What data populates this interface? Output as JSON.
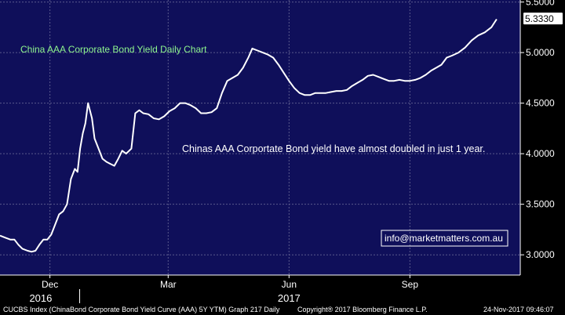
{
  "chart_data": {
    "type": "line",
    "title": "China AAA Corporate Bond Yield Daily Chart",
    "annotation": "Chinas AAA Corportate Bond yield have almost doubled in just 1 year.",
    "contact": "info@marketmatters.com.au",
    "ylim": [
      2.8,
      5.52
    ],
    "yticks": [
      "5.5000",
      "5.0000",
      "4.5000",
      "4.0000",
      "3.5000",
      "3.0000"
    ],
    "ytick_values": [
      5.5,
      5.0,
      4.5,
      4.0,
      3.5,
      3.0
    ],
    "last_value_label": "5.3330",
    "last_value": 5.333,
    "xlim": [
      "2016-10-24",
      "2017-11-24"
    ],
    "xticks": [
      {
        "label": "Dec",
        "date": "2016-12-01"
      },
      {
        "label": "Mar",
        "date": "2017-03-01"
      },
      {
        "label": "Jun",
        "date": "2017-06-01"
      },
      {
        "label": "Sep",
        "date": "2017-09-01"
      }
    ],
    "years": [
      {
        "label": "2016",
        "date": "2016-11-24"
      },
      {
        "label": "2017",
        "date": "2017-06-01"
      }
    ],
    "year_boundary": "2017-01-01",
    "grid": true,
    "series": [
      {
        "points": [
          [
            "2016-10-24",
            3.19
          ],
          [
            "2016-10-28",
            3.17
          ],
          [
            "2016-11-01",
            3.15
          ],
          [
            "2016-11-04",
            3.15
          ],
          [
            "2016-11-07",
            3.1
          ],
          [
            "2016-11-10",
            3.06
          ],
          [
            "2016-11-14",
            3.04
          ],
          [
            "2016-11-17",
            3.03
          ],
          [
            "2016-11-20",
            3.04
          ],
          [
            "2016-11-23",
            3.1
          ],
          [
            "2016-11-26",
            3.15
          ],
          [
            "2016-11-29",
            3.15
          ],
          [
            "2016-12-02",
            3.2
          ],
          [
            "2016-12-05",
            3.3
          ],
          [
            "2016-12-08",
            3.4
          ],
          [
            "2016-12-11",
            3.43
          ],
          [
            "2016-12-14",
            3.5
          ],
          [
            "2016-12-17",
            3.75
          ],
          [
            "2016-12-20",
            3.85
          ],
          [
            "2016-12-22",
            3.82
          ],
          [
            "2016-12-24",
            4.05
          ],
          [
            "2016-12-26",
            4.2
          ],
          [
            "2016-12-28",
            4.3
          ],
          [
            "2016-12-30",
            4.5
          ],
          [
            "2017-01-02",
            4.35
          ],
          [
            "2017-01-04",
            4.15
          ],
          [
            "2017-01-07",
            4.05
          ],
          [
            "2017-01-10",
            3.95
          ],
          [
            "2017-01-13",
            3.92
          ],
          [
            "2017-01-16",
            3.9
          ],
          [
            "2017-01-19",
            3.88
          ],
          [
            "2017-01-22",
            3.95
          ],
          [
            "2017-01-25",
            4.03
          ],
          [
            "2017-01-28",
            4.0
          ],
          [
            "2017-02-01",
            4.05
          ],
          [
            "2017-02-04",
            4.4
          ],
          [
            "2017-02-07",
            4.43
          ],
          [
            "2017-02-10",
            4.4
          ],
          [
            "2017-02-14",
            4.39
          ],
          [
            "2017-02-18",
            4.35
          ],
          [
            "2017-02-22",
            4.34
          ],
          [
            "2017-02-26",
            4.37
          ],
          [
            "2017-03-02",
            4.42
          ],
          [
            "2017-03-06",
            4.45
          ],
          [
            "2017-03-10",
            4.5
          ],
          [
            "2017-03-14",
            4.5
          ],
          [
            "2017-03-18",
            4.48
          ],
          [
            "2017-03-22",
            4.45
          ],
          [
            "2017-03-26",
            4.4
          ],
          [
            "2017-03-30",
            4.4
          ],
          [
            "2017-04-03",
            4.41
          ],
          [
            "2017-04-07",
            4.45
          ],
          [
            "2017-04-11",
            4.6
          ],
          [
            "2017-04-15",
            4.72
          ],
          [
            "2017-04-19",
            4.75
          ],
          [
            "2017-04-23",
            4.78
          ],
          [
            "2017-04-27",
            4.85
          ],
          [
            "2017-05-01",
            4.95
          ],
          [
            "2017-05-04",
            5.04
          ],
          [
            "2017-05-08",
            5.02
          ],
          [
            "2017-05-12",
            5.0
          ],
          [
            "2017-05-16",
            4.98
          ],
          [
            "2017-05-20",
            4.95
          ],
          [
            "2017-05-24",
            4.88
          ],
          [
            "2017-05-28",
            4.8
          ],
          [
            "2017-06-01",
            4.72
          ],
          [
            "2017-06-05",
            4.65
          ],
          [
            "2017-06-09",
            4.6
          ],
          [
            "2017-06-13",
            4.58
          ],
          [
            "2017-06-17",
            4.58
          ],
          [
            "2017-06-21",
            4.6
          ],
          [
            "2017-06-25",
            4.6
          ],
          [
            "2017-06-29",
            4.6
          ],
          [
            "2017-07-03",
            4.61
          ],
          [
            "2017-07-07",
            4.62
          ],
          [
            "2017-07-11",
            4.62
          ],
          [
            "2017-07-15",
            4.63
          ],
          [
            "2017-07-19",
            4.67
          ],
          [
            "2017-07-23",
            4.7
          ],
          [
            "2017-07-27",
            4.73
          ],
          [
            "2017-07-31",
            4.77
          ],
          [
            "2017-08-04",
            4.78
          ],
          [
            "2017-08-08",
            4.76
          ],
          [
            "2017-08-12",
            4.74
          ],
          [
            "2017-08-16",
            4.72
          ],
          [
            "2017-08-20",
            4.72
          ],
          [
            "2017-08-24",
            4.73
          ],
          [
            "2017-08-28",
            4.72
          ],
          [
            "2017-09-01",
            4.72
          ],
          [
            "2017-09-05",
            4.73
          ],
          [
            "2017-09-09",
            4.75
          ],
          [
            "2017-09-13",
            4.78
          ],
          [
            "2017-09-17",
            4.82
          ],
          [
            "2017-09-21",
            4.85
          ],
          [
            "2017-09-25",
            4.88
          ],
          [
            "2017-09-29",
            4.95
          ],
          [
            "2017-10-03",
            4.97
          ],
          [
            "2017-10-08",
            5.0
          ],
          [
            "2017-10-13",
            5.05
          ],
          [
            "2017-10-18",
            5.12
          ],
          [
            "2017-10-23",
            5.17
          ],
          [
            "2017-10-28",
            5.2
          ],
          [
            "2017-11-02",
            5.25
          ],
          [
            "2017-11-06",
            5.33
          ]
        ]
      }
    ]
  },
  "footer": {
    "left": "CUCBS Index (ChinaBond Corporate Bond Yield Curve (AAA) 5Y YTM) Graph 217  Daily",
    "mid": "Copyright® 2017 Bloomberg Finance L.P.",
    "right": "24-Nov-2017 09:46:07"
  },
  "colors": {
    "plot_bg": "#0f0f5a",
    "grid": "#5a5a8c",
    "line": "#ffffff",
    "title": "#8ef58e",
    "last_label_bg": "#ffffff"
  }
}
